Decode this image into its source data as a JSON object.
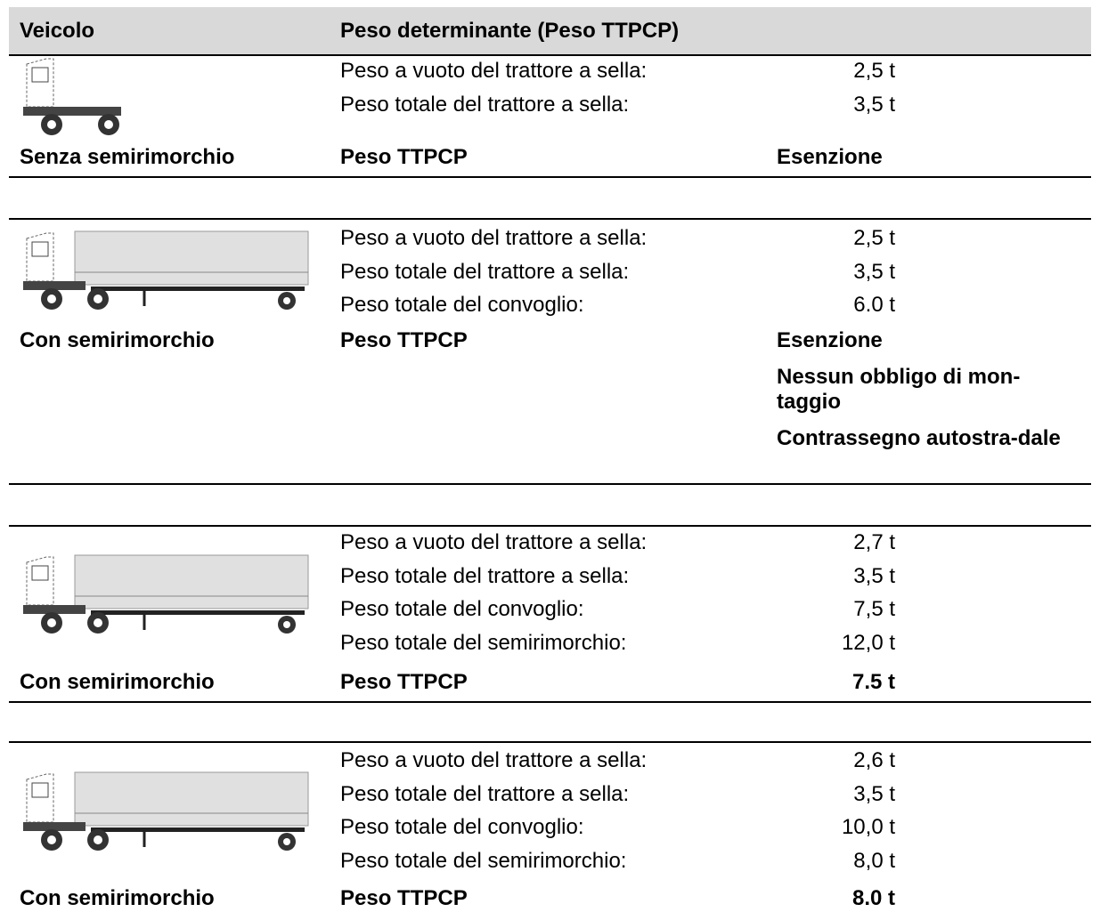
{
  "header": {
    "vehicle": "Veicolo",
    "weight": "Peso determinante (Peso TTPCP)"
  },
  "blocks": [
    {
      "rows": [
        {
          "label": "Peso a vuoto del trattore a sella:",
          "value": "2,5 t"
        },
        {
          "label": "Peso totale del trattore a sella:",
          "value": "3,5 t"
        }
      ],
      "vehicle": "Senza semirimorchio",
      "weight_label": "Peso TTPCP",
      "results": [
        "Esenzione"
      ]
    },
    {
      "rows": [
        {
          "label": "Peso a vuoto del trattore a sella:",
          "value": "2,5 t"
        },
        {
          "label": "Peso totale del trattore a sella:",
          "value": "3,5 t"
        },
        {
          "label": "Peso totale del convoglio:",
          "value": "6.0 t"
        }
      ],
      "vehicle": "Con semirimorchio",
      "weight_label": "Peso TTPCP",
      "results": [
        "Esenzione",
        "Nessun obbligo di mon-taggio",
        "Contrassegno autostra-dale"
      ]
    },
    {
      "rows": [
        {
          "label": "Peso a vuoto del trattore a sella:",
          "value": "2,7 t"
        },
        {
          "label": "Peso totale del trattore a sella:",
          "value": "3,5 t"
        },
        {
          "label": "Peso totale del convoglio:",
          "value": "7,5 t"
        },
        {
          "label": "Peso totale del semirimorchio:",
          "value": "12,0 t"
        }
      ],
      "vehicle": "Con semirimorchio",
      "weight_label": "Peso TTPCP",
      "total": "7.5 t"
    },
    {
      "rows": [
        {
          "label": "Peso a vuoto del trattore a sella:",
          "value": "2,6 t"
        },
        {
          "label": "Peso totale del trattore a sella:",
          "value": "3,5 t"
        },
        {
          "label": "Peso totale del convoglio:",
          "value": "10,0 t"
        },
        {
          "label": "Peso totale del semirimorchio:",
          "value": "8,0 t"
        }
      ],
      "vehicle": "Con semirimorchio",
      "weight_label": "Peso TTPCP",
      "total": "8.0 t"
    }
  ]
}
